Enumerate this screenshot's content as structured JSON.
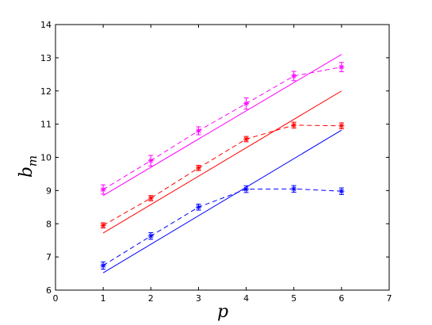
{
  "chart_data": {
    "type": "line",
    "xlabel": "p",
    "ylabel_base": "b",
    "ylabel_sub": "m",
    "xlim": [
      0,
      7
    ],
    "ylim": [
      6,
      14
    ],
    "xticks": [
      0,
      1,
      2,
      3,
      4,
      5,
      6,
      7
    ],
    "yticks": [
      6,
      7,
      8,
      9,
      10,
      11,
      12,
      13,
      14
    ],
    "grid": false,
    "legend": "none",
    "series": [
      {
        "color": "#ff00ff",
        "markers": [
          {
            "x": 1,
            "y": 9.03,
            "err": 0.14
          },
          {
            "x": 2,
            "y": 9.9,
            "err": 0.16
          },
          {
            "x": 3,
            "y": 10.8,
            "err": 0.12
          },
          {
            "x": 4,
            "y": 11.62,
            "err": 0.17
          },
          {
            "x": 5,
            "y": 12.45,
            "err": 0.14
          },
          {
            "x": 6,
            "y": 12.72,
            "err": 0.14
          }
        ],
        "fit": [
          {
            "x": 1,
            "y": 8.85
          },
          {
            "x": 6,
            "y": 13.1
          }
        ]
      },
      {
        "color": "#ff0000",
        "markers": [
          {
            "x": 1,
            "y": 7.95,
            "err": 0.08
          },
          {
            "x": 2,
            "y": 8.77,
            "err": 0.08
          },
          {
            "x": 3,
            "y": 9.68,
            "err": 0.08
          },
          {
            "x": 4,
            "y": 10.55,
            "err": 0.08
          },
          {
            "x": 5,
            "y": 10.97,
            "err": 0.09
          },
          {
            "x": 6,
            "y": 10.95,
            "err": 0.09
          }
        ],
        "fit": [
          {
            "x": 1,
            "y": 7.72
          },
          {
            "x": 6,
            "y": 12.0
          }
        ]
      },
      {
        "color": "#0000ff",
        "markers": [
          {
            "x": 1,
            "y": 6.74,
            "err": 0.11
          },
          {
            "x": 2,
            "y": 7.63,
            "err": 0.1
          },
          {
            "x": 3,
            "y": 8.5,
            "err": 0.09
          },
          {
            "x": 4,
            "y": 9.04,
            "err": 0.1
          },
          {
            "x": 5,
            "y": 9.05,
            "err": 0.1
          },
          {
            "x": 6,
            "y": 8.98,
            "err": 0.1
          }
        ],
        "fit": [
          {
            "x": 1,
            "y": 6.52
          },
          {
            "x": 6,
            "y": 10.82
          }
        ]
      }
    ]
  }
}
